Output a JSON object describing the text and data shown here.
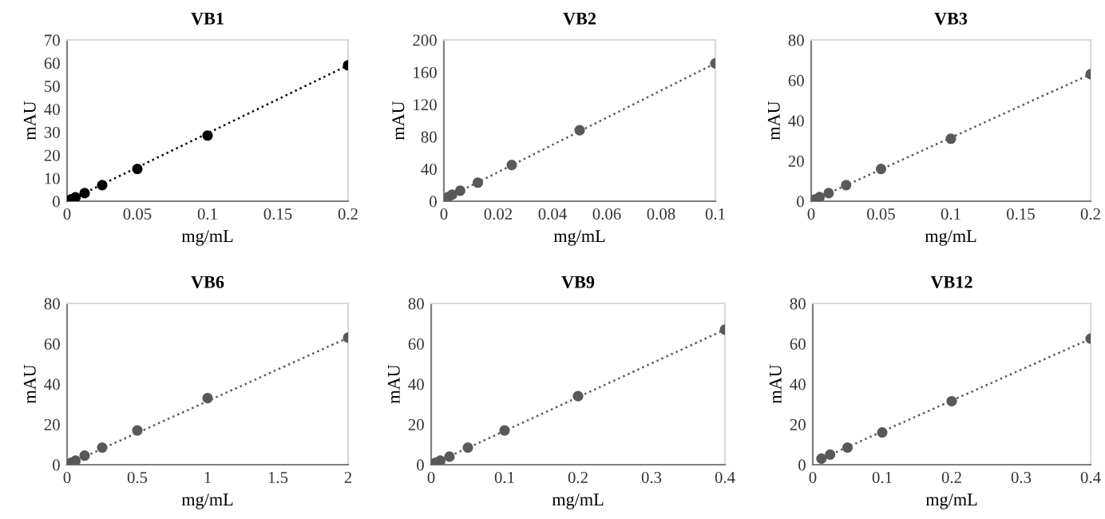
{
  "chart_data": [
    {
      "type": "scatter",
      "title": "VB1",
      "xlabel": "mg/mL",
      "ylabel": "mAU",
      "xlim": [
        0,
        0.2
      ],
      "xticks": [
        0,
        0.05,
        0.1,
        0.15,
        0.2
      ],
      "ylim": [
        0,
        70
      ],
      "yticks": [
        0,
        10,
        20,
        30,
        40,
        50,
        60,
        70
      ],
      "grid": false,
      "legend": false,
      "marker": "circle",
      "series": [
        {
          "type": "scatter",
          "color": "#000000",
          "x": [
            0.003,
            0.006,
            0.0125,
            0.025,
            0.05,
            0.1,
            0.2
          ],
          "values": [
            0.8,
            1.7,
            3.5,
            7,
            14,
            28.5,
            59
          ]
        },
        {
          "type": "line",
          "color": "#000000",
          "line_style": "dotted",
          "marker": "none",
          "x": [
            0.003,
            0.2
          ],
          "values": [
            0.8,
            59
          ]
        }
      ]
    },
    {
      "type": "scatter",
      "title": "VB2",
      "xlabel": "mg/mL",
      "ylabel": "mAU",
      "xlim": [
        0,
        0.1
      ],
      "xticks": [
        0,
        0.02,
        0.04,
        0.06,
        0.08,
        0.1
      ],
      "ylim": [
        0,
        200
      ],
      "yticks": [
        0,
        40,
        80,
        120,
        160,
        200
      ],
      "grid": false,
      "legend": false,
      "marker": "circle",
      "series": [
        {
          "type": "scatter",
          "color": "#595959",
          "x": [
            0.0015,
            0.003,
            0.006,
            0.0125,
            0.025,
            0.05,
            0.1
          ],
          "values": [
            5,
            8,
            13,
            23,
            45,
            88,
            171
          ]
        },
        {
          "type": "line",
          "color": "#595959",
          "line_style": "dotted",
          "marker": "none",
          "x": [
            0.0015,
            0.1
          ],
          "values": [
            5,
            171
          ]
        }
      ]
    },
    {
      "type": "scatter",
      "title": "VB3",
      "xlabel": "mg/mL",
      "ylabel": "mAU",
      "xlim": [
        0,
        0.2
      ],
      "xticks": [
        0,
        0.05,
        0.1,
        0.15,
        0.2
      ],
      "ylim": [
        0,
        80
      ],
      "yticks": [
        0,
        20,
        40,
        60,
        80
      ],
      "grid": false,
      "legend": false,
      "marker": "circle",
      "series": [
        {
          "type": "scatter",
          "color": "#595959",
          "x": [
            0.003,
            0.006,
            0.0125,
            0.025,
            0.05,
            0.1,
            0.2
          ],
          "values": [
            1,
            2,
            4,
            8,
            16,
            31,
            63
          ]
        },
        {
          "type": "line",
          "color": "#595959",
          "line_style": "dotted",
          "marker": "none",
          "x": [
            0.003,
            0.2
          ],
          "values": [
            1,
            63
          ]
        }
      ]
    },
    {
      "type": "scatter",
      "title": "VB6",
      "xlabel": "mg/mL",
      "ylabel": "mAU",
      "xlim": [
        0,
        2
      ],
      "xticks": [
        0,
        0.5,
        1,
        1.5,
        2
      ],
      "ylim": [
        0,
        80
      ],
      "yticks": [
        0,
        20,
        40,
        60,
        80
      ],
      "grid": false,
      "legend": false,
      "marker": "circle",
      "series": [
        {
          "type": "scatter",
          "color": "#595959",
          "x": [
            0.03,
            0.06,
            0.125,
            0.25,
            0.5,
            1,
            2
          ],
          "values": [
            1,
            2,
            4.5,
            8.5,
            17,
            33,
            63
          ]
        },
        {
          "type": "line",
          "color": "#595959",
          "line_style": "dotted",
          "marker": "none",
          "x": [
            0.03,
            2
          ],
          "values": [
            1,
            63
          ]
        }
      ]
    },
    {
      "type": "scatter",
      "title": "VB9",
      "xlabel": "mg/mL",
      "ylabel": "mAU",
      "xlim": [
        0,
        0.4
      ],
      "xticks": [
        0,
        0.1,
        0.2,
        0.3,
        0.4
      ],
      "ylim": [
        0,
        80
      ],
      "yticks": [
        0,
        20,
        40,
        60,
        80
      ],
      "grid": false,
      "legend": false,
      "marker": "circle",
      "series": [
        {
          "type": "scatter",
          "color": "#595959",
          "x": [
            0.006,
            0.0125,
            0.025,
            0.05,
            0.1,
            0.2,
            0.4
          ],
          "values": [
            1,
            2,
            4,
            8.5,
            17,
            34,
            67
          ]
        },
        {
          "type": "line",
          "color": "#595959",
          "line_style": "dotted",
          "marker": "none",
          "x": [
            0.006,
            0.4
          ],
          "values": [
            1,
            67
          ]
        }
      ]
    },
    {
      "type": "scatter",
      "title": "VB12",
      "xlabel": "mg/mL",
      "ylabel": "mAU",
      "xlim": [
        0,
        0.4
      ],
      "xticks": [
        0,
        0.1,
        0.2,
        0.3,
        0.4
      ],
      "ylim": [
        0,
        80
      ],
      "yticks": [
        0,
        20,
        40,
        60,
        80
      ],
      "grid": false,
      "legend": false,
      "marker": "circle",
      "series": [
        {
          "type": "scatter",
          "color": "#595959",
          "x": [
            0.0125,
            0.025,
            0.05,
            0.1,
            0.2,
            0.4
          ],
          "values": [
            3,
            5,
            8.5,
            16,
            31.5,
            62.5
          ]
        },
        {
          "type": "line",
          "color": "#595959",
          "line_style": "dotted",
          "marker": "none",
          "x": [
            0.0125,
            0.4
          ],
          "values": [
            3,
            62.5
          ]
        }
      ]
    }
  ]
}
